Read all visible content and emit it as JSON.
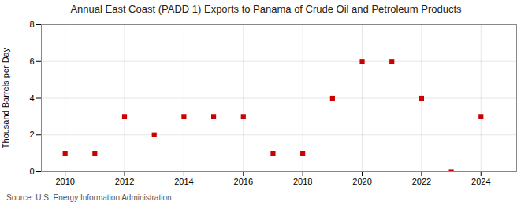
{
  "chart_data": {
    "type": "scatter",
    "title": "Annual East Coast (PADD 1) Exports to Panama of Crude Oil and Petroleum Products",
    "ylabel": "Thousand Barrels per Day",
    "annotation": "Source: U.S. Energy Information Administration",
    "x": [
      2010,
      2011,
      2012,
      2013,
      2014,
      2015,
      2016,
      2017,
      2018,
      2019,
      2020,
      2021,
      2022,
      2023,
      2024
    ],
    "values": [
      1,
      1,
      3,
      2,
      3,
      3,
      3,
      1,
      1,
      4,
      6,
      6,
      4,
      0,
      3
    ],
    "color": "#cc0000",
    "marker": "square",
    "xlim": [
      2009.2,
      2025.2
    ],
    "xticks": [
      2010,
      2012,
      2014,
      2016,
      2018,
      2020,
      2022,
      2024
    ],
    "ylim": [
      0,
      8
    ],
    "yticks": [
      0,
      2,
      4,
      6,
      8
    ],
    "grid": true
  }
}
